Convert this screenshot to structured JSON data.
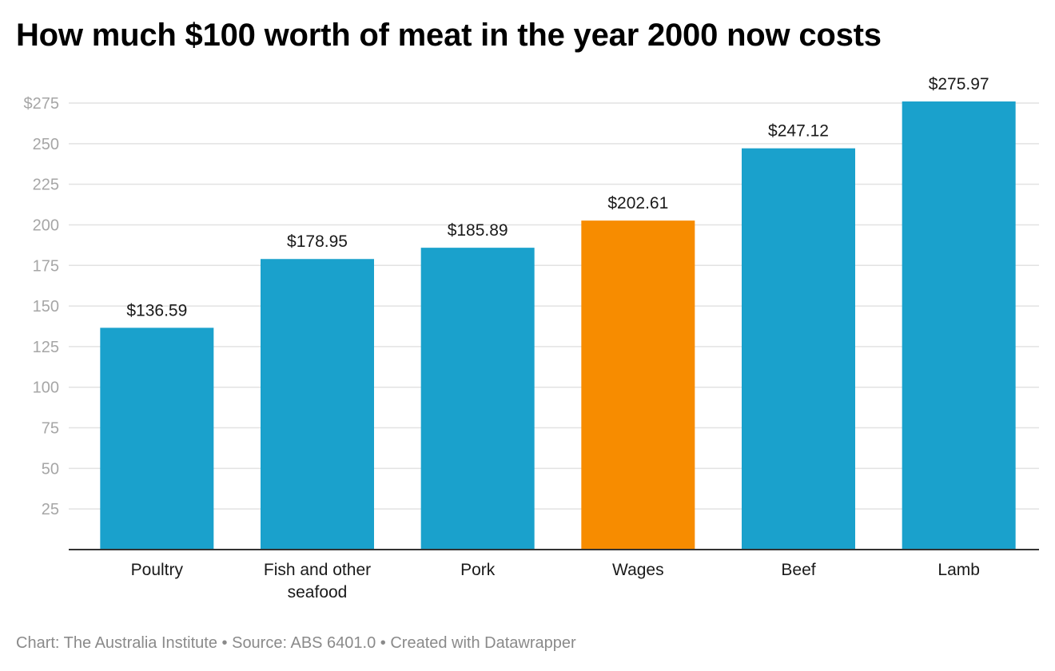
{
  "chart_data": {
    "type": "bar",
    "title": "How much $100 worth of meat in the year 2000 now costs",
    "categories": [
      [
        "Poultry"
      ],
      [
        "Fish and other",
        "seafood"
      ],
      [
        "Pork"
      ],
      [
        "Wages"
      ],
      [
        "Beef"
      ],
      [
        "Lamb"
      ]
    ],
    "values": [
      136.59,
      178.95,
      185.89,
      202.61,
      247.12,
      275.97
    ],
    "value_labels": [
      "$136.59",
      "$178.95",
      "$185.89",
      "$202.61",
      "$247.12",
      "$275.97"
    ],
    "bar_colors": [
      "#1aa1cc",
      "#1aa1cc",
      "#1aa1cc",
      "#f78c00",
      "#1aa1cc",
      "#1aa1cc"
    ],
    "ylim": [
      0,
      275
    ],
    "yticks": [
      25,
      50,
      75,
      100,
      125,
      150,
      175,
      200,
      225,
      250,
      275
    ],
    "ytick_labels": [
      "25",
      "50",
      "75",
      "100",
      "125",
      "150",
      "175",
      "200",
      "225",
      "250",
      "$275"
    ],
    "grid": true,
    "legend": "none"
  },
  "footer": {
    "text": "Chart: The Australia Institute • Source: ABS 6401.0 • Created with Datawrapper"
  }
}
